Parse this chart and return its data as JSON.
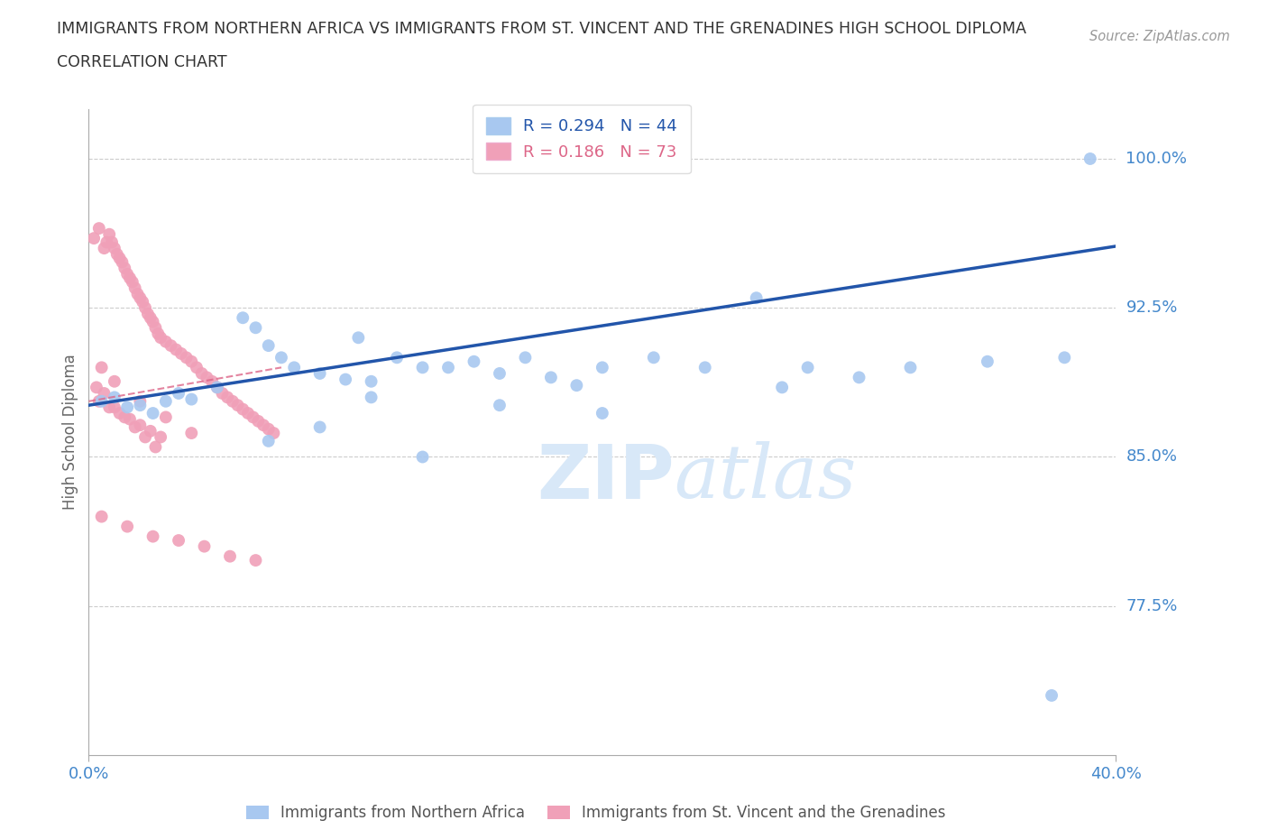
{
  "title_line1": "IMMIGRANTS FROM NORTHERN AFRICA VS IMMIGRANTS FROM ST. VINCENT AND THE GRENADINES HIGH SCHOOL DIPLOMA",
  "title_line2": "CORRELATION CHART",
  "source_text": "Source: ZipAtlas.com",
  "ylabel": "High School Diploma",
  "xmin": 0.0,
  "xmax": 0.4,
  "ymin": 0.7,
  "ymax": 1.025,
  "yticks": [
    0.775,
    0.85,
    0.925,
    1.0
  ],
  "ytick_labels": [
    "77.5%",
    "85.0%",
    "92.5%",
    "100.0%"
  ],
  "xticks": [
    0.0,
    0.4
  ],
  "xtick_labels": [
    "0.0%",
    "40.0%"
  ],
  "blue_R": 0.294,
  "blue_N": 44,
  "pink_R": 0.186,
  "pink_N": 73,
  "blue_color": "#a8c8f0",
  "pink_color": "#f0a0b8",
  "blue_line_color": "#2255aa",
  "pink_line_color": "#dd6688",
  "grid_color": "#cccccc",
  "tick_label_color": "#4488cc",
  "title_color": "#333333",
  "watermark_color": "#d8e8f8",
  "blue_x": [
    0.005,
    0.01,
    0.015,
    0.02,
    0.025,
    0.03,
    0.035,
    0.04,
    0.05,
    0.06,
    0.065,
    0.07,
    0.075,
    0.08,
    0.09,
    0.1,
    0.105,
    0.11,
    0.12,
    0.13,
    0.14,
    0.15,
    0.16,
    0.17,
    0.18,
    0.19,
    0.2,
    0.22,
    0.24,
    0.26,
    0.28,
    0.3,
    0.32,
    0.35,
    0.38,
    0.39,
    0.13,
    0.09,
    0.07,
    0.11,
    0.16,
    0.2,
    0.27,
    0.375
  ],
  "blue_y": [
    0.878,
    0.88,
    0.875,
    0.876,
    0.872,
    0.878,
    0.882,
    0.879,
    0.885,
    0.92,
    0.915,
    0.906,
    0.9,
    0.895,
    0.892,
    0.889,
    0.91,
    0.888,
    0.9,
    0.895,
    0.895,
    0.898,
    0.892,
    0.9,
    0.89,
    0.886,
    0.895,
    0.9,
    0.895,
    0.93,
    0.895,
    0.89,
    0.895,
    0.898,
    0.9,
    1.0,
    0.85,
    0.865,
    0.858,
    0.88,
    0.876,
    0.872,
    0.885,
    0.73
  ],
  "pink_x": [
    0.002,
    0.004,
    0.006,
    0.007,
    0.008,
    0.009,
    0.01,
    0.011,
    0.012,
    0.013,
    0.014,
    0.015,
    0.016,
    0.017,
    0.018,
    0.019,
    0.02,
    0.021,
    0.022,
    0.023,
    0.024,
    0.025,
    0.026,
    0.027,
    0.028,
    0.03,
    0.032,
    0.034,
    0.036,
    0.038,
    0.04,
    0.042,
    0.044,
    0.046,
    0.048,
    0.05,
    0.052,
    0.054,
    0.056,
    0.058,
    0.06,
    0.062,
    0.064,
    0.066,
    0.068,
    0.07,
    0.072,
    0.004,
    0.008,
    0.012,
    0.016,
    0.02,
    0.024,
    0.028,
    0.003,
    0.006,
    0.01,
    0.014,
    0.018,
    0.022,
    0.026,
    0.005,
    0.015,
    0.025,
    0.035,
    0.045,
    0.055,
    0.065,
    0.005,
    0.01,
    0.02,
    0.03,
    0.04
  ],
  "pink_y": [
    0.96,
    0.965,
    0.955,
    0.958,
    0.962,
    0.958,
    0.955,
    0.952,
    0.95,
    0.948,
    0.945,
    0.942,
    0.94,
    0.938,
    0.935,
    0.932,
    0.93,
    0.928,
    0.925,
    0.922,
    0.92,
    0.918,
    0.915,
    0.912,
    0.91,
    0.908,
    0.906,
    0.904,
    0.902,
    0.9,
    0.898,
    0.895,
    0.892,
    0.89,
    0.888,
    0.885,
    0.882,
    0.88,
    0.878,
    0.876,
    0.874,
    0.872,
    0.87,
    0.868,
    0.866,
    0.864,
    0.862,
    0.878,
    0.875,
    0.872,
    0.869,
    0.866,
    0.863,
    0.86,
    0.885,
    0.882,
    0.875,
    0.87,
    0.865,
    0.86,
    0.855,
    0.82,
    0.815,
    0.81,
    0.808,
    0.805,
    0.8,
    0.798,
    0.895,
    0.888,
    0.878,
    0.87,
    0.862
  ],
  "blue_line_x0": 0.0,
  "blue_line_x1": 0.4,
  "blue_line_y0": 0.876,
  "blue_line_y1": 0.956,
  "pink_line_x0": 0.0,
  "pink_line_x1": 0.075,
  "pink_line_y0": 0.878,
  "pink_line_y1": 0.895
}
